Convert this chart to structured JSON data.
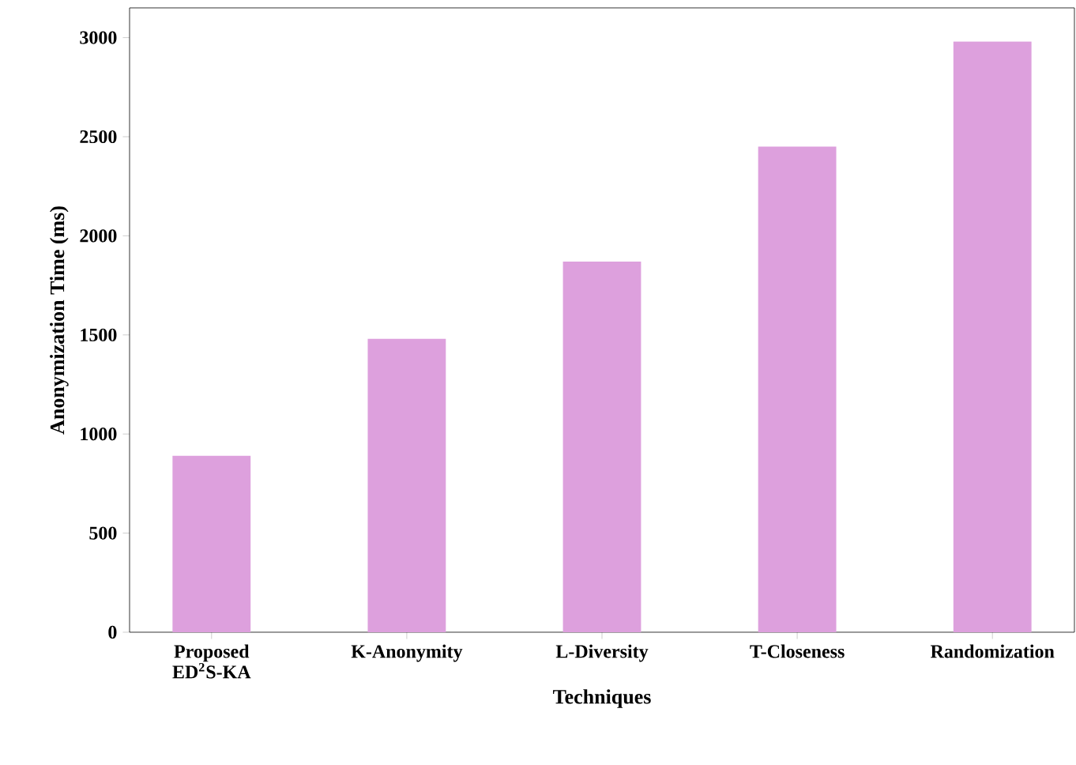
{
  "chart_data": {
    "type": "bar",
    "xlabel": "Techniques",
    "ylabel": "Anonymization Time (ms)",
    "categories": [
      "Proposed ED$^{2}$S-KA",
      "K-Anonymity",
      "L-Diversity",
      "T-Closeness",
      "Randomization"
    ],
    "values": [
      890,
      1480,
      1870,
      2450,
      2980
    ],
    "color": "#dda0dd",
    "ylim": [
      0,
      3150
    ],
    "yticks": [
      0,
      500,
      1000,
      1500,
      2000,
      2500,
      3000
    ]
  }
}
